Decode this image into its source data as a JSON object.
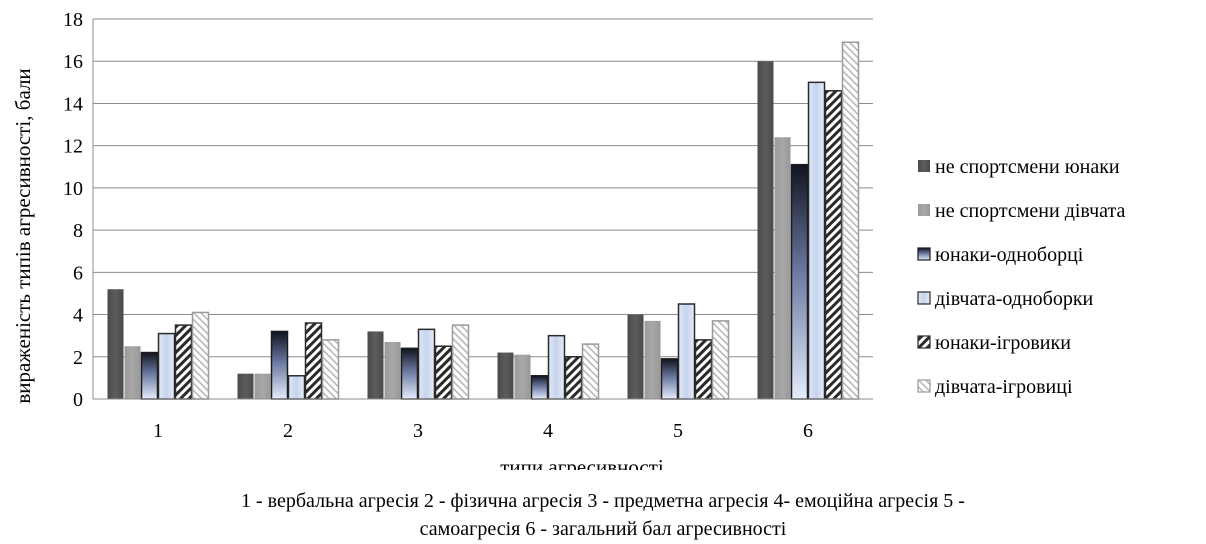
{
  "chart_data": {
    "type": "bar",
    "categories": [
      "1",
      "2",
      "3",
      "4",
      "5",
      "6"
    ],
    "series": [
      {
        "name": "не спортсмени юнаки",
        "values": [
          5.2,
          1.2,
          3.2,
          2.2,
          4.0,
          16.0
        ]
      },
      {
        "name": "не спортсмени дівчата",
        "values": [
          2.5,
          1.2,
          2.7,
          2.1,
          3.7,
          12.4
        ]
      },
      {
        "name": "юнаки-одноборці",
        "values": [
          2.2,
          3.2,
          2.4,
          1.1,
          1.9,
          11.1
        ]
      },
      {
        "name": "дівчата-одноборки",
        "values": [
          3.1,
          1.1,
          3.3,
          3.0,
          4.5,
          15.0
        ]
      },
      {
        "name": "юнаки-ігровики",
        "values": [
          3.5,
          3.6,
          2.5,
          2.0,
          2.8,
          14.6
        ]
      },
      {
        "name": "дівчата-ігровиці",
        "values": [
          4.1,
          2.8,
          3.5,
          2.6,
          3.7,
          16.9
        ]
      }
    ],
    "xlabel": "типи агресивності",
    "ylabel": "вираженість типів агресивності, бали",
    "ylim": [
      0,
      18
    ],
    "yticks": [
      "0",
      "2",
      "4",
      "6",
      "8",
      "10",
      "12",
      "14",
      "16",
      "18"
    ],
    "grid": "horizontal",
    "legend": "right",
    "note_line1": "1 - вербальна агресія 2 - фізична агресія 3 - предметна агресія 4- емоційна агресія 5 -",
    "note_line2": "самоагресія 6 - загальний бал агресивності"
  }
}
